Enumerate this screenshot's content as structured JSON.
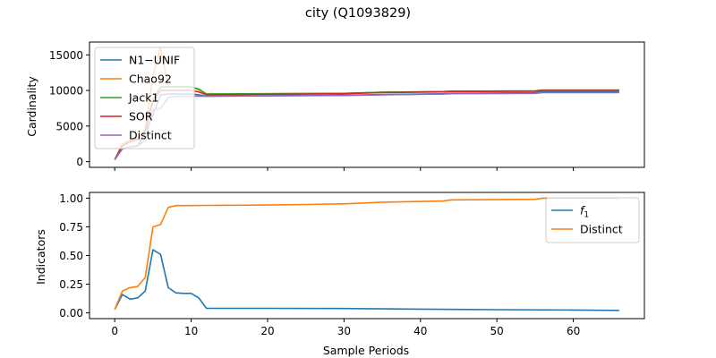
{
  "figure": {
    "title": "city (Q1093829)"
  },
  "colors": {
    "blue": "#1f77b4",
    "orange": "#ff7f0e",
    "green": "#2ca02c",
    "red": "#d62728",
    "purple": "#9467bd"
  },
  "chart_data": [
    {
      "type": "line",
      "title": "city (Q1093829)",
      "xlabel": "",
      "ylabel": "Cardinality",
      "xlim": [
        -3.3,
        69.3
      ],
      "ylim": [
        -800,
        16800
      ],
      "xticks": [
        0,
        10,
        20,
        30,
        40,
        50,
        60
      ],
      "yticks": [
        0,
        5000,
        10000,
        15000
      ],
      "ytick_labels": [
        "0",
        "5000",
        "10000",
        "15000"
      ],
      "legend_position": "upper-left",
      "series": [
        {
          "name": "N1−UNIF",
          "color": "#1f77b4",
          "points": [
            [
              0,
              300
            ],
            [
              1,
              1800
            ],
            [
              2,
              2100
            ],
            [
              3,
              2200
            ],
            [
              4,
              4200
            ],
            [
              5,
              6500
            ],
            [
              6,
              9400
            ],
            [
              7,
              9500
            ],
            [
              8,
              9500
            ],
            [
              9,
              9500
            ],
            [
              10,
              9500
            ],
            [
              11,
              9400
            ],
            [
              12,
              9200
            ],
            [
              20,
              9250
            ],
            [
              30,
              9350
            ],
            [
              40,
              9500
            ],
            [
              43,
              9550
            ],
            [
              44,
              9600
            ],
            [
              55,
              9700
            ],
            [
              56,
              9800
            ],
            [
              66,
              9800
            ]
          ]
        },
        {
          "name": "Chao92",
          "color": "#ff7f0e",
          "points": [
            [
              0,
              300
            ],
            [
              1,
              2500
            ],
            [
              2,
              3000
            ],
            [
              3,
              3300
            ],
            [
              4,
              4500
            ],
            [
              5,
              12000
            ],
            [
              6,
              16000
            ],
            [
              7,
              10500
            ],
            [
              8,
              10500
            ],
            [
              9,
              10500
            ],
            [
              10,
              10500
            ],
            [
              11,
              10100
            ],
            [
              12,
              9500
            ],
            [
              20,
              9550
            ],
            [
              30,
              9600
            ],
            [
              35,
              9750
            ],
            [
              43,
              9850
            ],
            [
              44,
              9900
            ],
            [
              55,
              9950
            ],
            [
              56,
              10050
            ],
            [
              66,
              10050
            ]
          ]
        },
        {
          "name": "Jack1",
          "color": "#2ca02c",
          "points": [
            [
              0,
              300
            ],
            [
              1,
              2300
            ],
            [
              2,
              2800
            ],
            [
              3,
              3100
            ],
            [
              4,
              4500
            ],
            [
              5,
              8700
            ],
            [
              6,
              10500
            ],
            [
              7,
              10500
            ],
            [
              8,
              10500
            ],
            [
              9,
              10500
            ],
            [
              10,
              10500
            ],
            [
              11,
              10200
            ],
            [
              12,
              9500
            ],
            [
              20,
              9550
            ],
            [
              30,
              9600
            ],
            [
              35,
              9750
            ],
            [
              43,
              9850
            ],
            [
              44,
              9900
            ],
            [
              55,
              9950
            ],
            [
              56,
              10050
            ],
            [
              66,
              10050
            ]
          ]
        },
        {
          "name": "SOR",
          "color": "#d62728",
          "points": [
            [
              0,
              300
            ],
            [
              1,
              2200
            ],
            [
              2,
              2800
            ],
            [
              3,
              3100
            ],
            [
              4,
              4400
            ],
            [
              5,
              8500
            ],
            [
              6,
              10000
            ],
            [
              7,
              10000
            ],
            [
              8,
              10000
            ],
            [
              9,
              10000
            ],
            [
              10,
              10000
            ],
            [
              11,
              9800
            ],
            [
              12,
              9400
            ],
            [
              20,
              9450
            ],
            [
              30,
              9550
            ],
            [
              35,
              9700
            ],
            [
              43,
              9800
            ],
            [
              44,
              9850
            ],
            [
              55,
              9900
            ],
            [
              56,
              10000
            ],
            [
              66,
              10000
            ]
          ]
        },
        {
          "name": "Distinct",
          "color": "#9467bd",
          "points": [
            [
              0,
              300
            ],
            [
              1,
              1800
            ],
            [
              2,
              2100
            ],
            [
              3,
              2200
            ],
            [
              4,
              3000
            ],
            [
              5,
              7300
            ],
            [
              6,
              7500
            ],
            [
              7,
              9000
            ],
            [
              8,
              9200
            ],
            [
              9,
              9200
            ],
            [
              10,
              9200
            ],
            [
              11,
              9200
            ],
            [
              12,
              9200
            ],
            [
              20,
              9250
            ],
            [
              30,
              9300
            ],
            [
              35,
              9400
            ],
            [
              43,
              9500
            ],
            [
              44,
              9550
            ],
            [
              55,
              9600
            ],
            [
              56,
              9700
            ],
            [
              66,
              9700
            ]
          ]
        }
      ]
    },
    {
      "type": "line",
      "title": "",
      "xlabel": "Sample Periods",
      "ylabel": "Indicators",
      "xlim": [
        -3.3,
        69.3
      ],
      "ylim": [
        -0.05,
        1.05
      ],
      "xticks": [
        0,
        10,
        20,
        30,
        40,
        50,
        60
      ],
      "xtick_labels": [
        "0",
        "10",
        "20",
        "30",
        "40",
        "50",
        "60"
      ],
      "yticks": [
        0,
        0.25,
        0.5,
        0.75,
        1.0
      ],
      "ytick_labels": [
        "0.00",
        "0.25",
        "0.50",
        "0.75",
        "1.00"
      ],
      "legend_position": "upper-right",
      "series": [
        {
          "name": "f1",
          "color": "#1f77b4",
          "points": [
            [
              0,
              0.03
            ],
            [
              1,
              0.16
            ],
            [
              2,
              0.12
            ],
            [
              3,
              0.13
            ],
            [
              4,
              0.19
            ],
            [
              5,
              0.55
            ],
            [
              6,
              0.51
            ],
            [
              7,
              0.22
            ],
            [
              8,
              0.175
            ],
            [
              9,
              0.17
            ],
            [
              10,
              0.17
            ],
            [
              11,
              0.13
            ],
            [
              12,
              0.04
            ],
            [
              20,
              0.04
            ],
            [
              30,
              0.038
            ],
            [
              40,
              0.033
            ],
            [
              50,
              0.028
            ],
            [
              60,
              0.025
            ],
            [
              66,
              0.022
            ]
          ]
        },
        {
          "name": "Distinct",
          "color": "#ff7f0e",
          "points": [
            [
              0,
              0.03
            ],
            [
              1,
              0.19
            ],
            [
              2,
              0.22
            ],
            [
              3,
              0.23
            ],
            [
              4,
              0.31
            ],
            [
              5,
              0.75
            ],
            [
              6,
              0.77
            ],
            [
              7,
              0.92
            ],
            [
              8,
              0.935
            ],
            [
              9,
              0.935
            ],
            [
              10,
              0.935
            ],
            [
              12,
              0.937
            ],
            [
              20,
              0.94
            ],
            [
              25,
              0.945
            ],
            [
              30,
              0.95
            ],
            [
              35,
              0.965
            ],
            [
              43,
              0.975
            ],
            [
              44,
              0.985
            ],
            [
              55,
              0.99
            ],
            [
              56,
              1.0
            ],
            [
              66,
              1.0
            ]
          ]
        }
      ]
    }
  ]
}
